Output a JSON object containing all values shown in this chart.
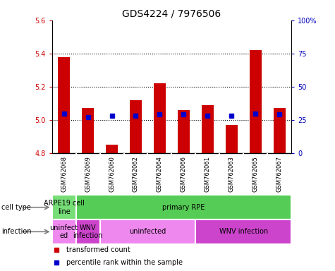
{
  "title": "GDS4224 / 7976506",
  "samples": [
    "GSM762068",
    "GSM762069",
    "GSM762060",
    "GSM762062",
    "GSM762064",
    "GSM762066",
    "GSM762061",
    "GSM762063",
    "GSM762065",
    "GSM762067"
  ],
  "transformed_count": [
    5.38,
    5.07,
    4.85,
    5.12,
    5.22,
    5.06,
    5.09,
    4.97,
    5.42,
    5.07
  ],
  "percentile_rank": [
    30,
    27,
    28,
    28,
    29,
    29,
    28,
    28,
    30,
    29
  ],
  "ylim": [
    4.8,
    5.6
  ],
  "yticks": [
    4.8,
    5.0,
    5.2,
    5.4,
    5.6
  ],
  "y2lim": [
    0,
    100
  ],
  "y2ticks": [
    0,
    25,
    50,
    75,
    100
  ],
  "y2ticklabels": [
    "0",
    "25",
    "50",
    "75",
    "100%"
  ],
  "bar_color": "#cc0000",
  "dot_color": "#0000cc",
  "bar_width": 0.5,
  "base_value": 4.8,
  "grid_lines": [
    5.0,
    5.2,
    5.4
  ],
  "cell_type_regions": [
    {
      "label": "ARPE19 cell\nline",
      "start": 0,
      "end": 1,
      "color": "#77dd77"
    },
    {
      "label": "primary RPE",
      "start": 1,
      "end": 10,
      "color": "#55cc55"
    }
  ],
  "infection_regions": [
    {
      "label": "uninfect\ned",
      "start": 0,
      "end": 1,
      "color": "#ee88ee"
    },
    {
      "label": "WNV\ninfection",
      "start": 1,
      "end": 2,
      "color": "#cc44cc"
    },
    {
      "label": "uninfected",
      "start": 2,
      "end": 6,
      "color": "#ee88ee"
    },
    {
      "label": "WNV infection",
      "start": 6,
      "end": 10,
      "color": "#cc44cc"
    }
  ],
  "bar_color_red": "#cc0000",
  "dot_color_blue": "#0000cc",
  "tick_color_red": "#cc0000",
  "tick_color_blue": "#0000bb",
  "label_fontsize": 7,
  "tick_fontsize": 7,
  "sample_fontsize": 6,
  "title_fontsize": 10
}
